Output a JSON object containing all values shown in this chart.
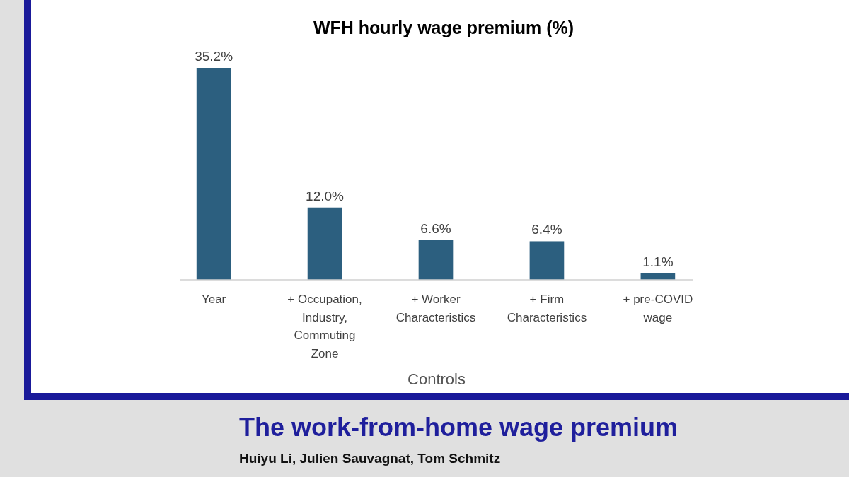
{
  "chart_data": {
    "type": "bar",
    "title": "WFH hourly wage premium (%)",
    "xlabel": "Controls",
    "categories": [
      "Year",
      "+ Occupation, Industry, Commuting Zone",
      "+ Worker Characteristics",
      "+ Firm Characteristics",
      "+ pre-COVID wage"
    ],
    "values": [
      35.2,
      12.0,
      6.6,
      6.4,
      1.1
    ],
    "value_labels": [
      "35.2%",
      "12.0%",
      "6.6%",
      "6.4%",
      "1.1%"
    ],
    "color": "#2c5f7f",
    "annotations": [
      "The work-from-home wage premium",
      "Huiyu Li, Julien Sauvagnat, Tom Schmitz"
    ]
  }
}
